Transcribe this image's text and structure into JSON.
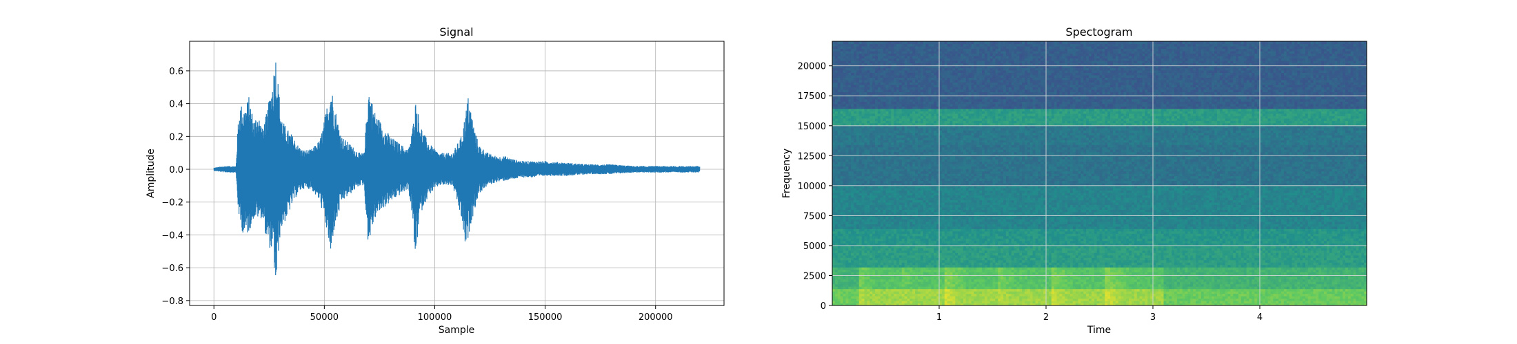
{
  "chart_data": [
    {
      "type": "line",
      "title": "Signal",
      "xlabel": "Sample",
      "ylabel": "Amplitude",
      "xlim": [
        -11000,
        231000
      ],
      "ylim": [
        -0.83,
        0.78
      ],
      "grid": true,
      "color": "#1f77b4",
      "xticks": [
        0,
        50000,
        100000,
        150000,
        200000
      ],
      "yticks": [
        -0.8,
        -0.6,
        -0.4,
        -0.2,
        0.0,
        0.2,
        0.4,
        0.6
      ],
      "xtick_labels": [
        "0",
        "50000",
        "100000",
        "150000",
        "200000"
      ],
      "ytick_labels": [
        "−0.8",
        "−0.6",
        "−0.4",
        "−0.2",
        "0.0",
        "0.2",
        "0.4",
        "0.6"
      ],
      "series": [
        {
          "envelope_x": [
            0,
            5000,
            10000,
            11000,
            12000,
            14000,
            16000,
            18000,
            20000,
            22000,
            24000,
            26000,
            27000,
            28000,
            29000,
            30000,
            31000,
            33000,
            36000,
            38000,
            40000,
            44000,
            48000,
            50000,
            52000,
            53000,
            54000,
            56000,
            58000,
            62000,
            66000,
            68000,
            69000,
            70000,
            71000,
            73000,
            76000,
            80000,
            85000,
            88000,
            90000,
            91000,
            92000,
            93000,
            95000,
            98000,
            102000,
            108000,
            112000,
            114000,
            115000,
            116000,
            117000,
            118000,
            120000,
            124000,
            128000,
            132000,
            136000,
            140000,
            145000,
            150000,
            160000,
            170000,
            180000,
            190000,
            200000,
            210000,
            220000
          ],
          "upper": [
            0.01,
            0.02,
            0.02,
            0.3,
            0.4,
            0.38,
            0.45,
            0.3,
            0.35,
            0.25,
            0.35,
            0.5,
            0.6,
            0.71,
            0.55,
            0.4,
            0.3,
            0.25,
            0.2,
            0.15,
            0.12,
            0.12,
            0.18,
            0.3,
            0.45,
            0.52,
            0.45,
            0.3,
            0.2,
            0.15,
            0.1,
            0.1,
            0.3,
            0.52,
            0.45,
            0.35,
            0.28,
            0.2,
            0.15,
            0.12,
            0.25,
            0.42,
            0.4,
            0.3,
            0.22,
            0.15,
            0.1,
            0.1,
            0.2,
            0.35,
            0.45,
            0.4,
            0.32,
            0.25,
            0.15,
            0.1,
            0.08,
            0.08,
            0.06,
            0.05,
            0.05,
            0.05,
            0.04,
            0.03,
            0.03,
            0.02,
            0.02,
            0.02,
            0.02
          ],
          "lower": [
            -0.01,
            -0.02,
            -0.02,
            -0.25,
            -0.35,
            -0.42,
            -0.38,
            -0.3,
            -0.3,
            -0.3,
            -0.45,
            -0.5,
            -0.55,
            -0.76,
            -0.55,
            -0.4,
            -0.35,
            -0.3,
            -0.2,
            -0.15,
            -0.12,
            -0.12,
            -0.2,
            -0.3,
            -0.45,
            -0.58,
            -0.4,
            -0.3,
            -0.2,
            -0.15,
            -0.1,
            -0.1,
            -0.3,
            -0.48,
            -0.4,
            -0.3,
            -0.25,
            -0.2,
            -0.15,
            -0.12,
            -0.3,
            -0.57,
            -0.45,
            -0.3,
            -0.22,
            -0.15,
            -0.1,
            -0.1,
            -0.3,
            -0.49,
            -0.45,
            -0.35,
            -0.3,
            -0.25,
            -0.15,
            -0.1,
            -0.08,
            -0.07,
            -0.06,
            -0.05,
            -0.05,
            -0.04,
            -0.04,
            -0.03,
            -0.03,
            -0.02,
            -0.02,
            -0.02,
            -0.02
          ]
        }
      ]
    },
    {
      "type": "heatmap",
      "title": "Spectogram",
      "xlabel": "Time",
      "ylabel": "Frequency",
      "xlim": [
        0,
        5.0
      ],
      "ylim": [
        0,
        22050
      ],
      "grid": true,
      "colormap": "viridis",
      "xticks": [
        1,
        2,
        3,
        4
      ],
      "yticks": [
        0,
        2500,
        5000,
        7500,
        10000,
        12500,
        15000,
        17500,
        20000
      ],
      "xtick_labels": [
        "1",
        "2",
        "3",
        "4"
      ],
      "ytick_labels": [
        "0",
        "2500",
        "5000",
        "7500",
        "10000",
        "12500",
        "15000",
        "17500",
        "20000"
      ],
      "bands": [
        {
          "f0": 0,
          "f1": 1500,
          "level": 0.85
        },
        {
          "f0": 1500,
          "f1": 3300,
          "level": 0.72
        },
        {
          "f0": 3300,
          "f1": 5000,
          "level": 0.55
        },
        {
          "f0": 5000,
          "f1": 6500,
          "level": 0.52
        },
        {
          "f0": 6500,
          "f1": 10000,
          "level": 0.45
        },
        {
          "f0": 10000,
          "f1": 13500,
          "level": 0.38
        },
        {
          "f0": 13500,
          "f1": 15000,
          "level": 0.4
        },
        {
          "f0": 15000,
          "f1": 16500,
          "level": 0.55
        },
        {
          "f0": 16500,
          "f1": 22050,
          "level": 0.3
        }
      ],
      "bursts": [
        {
          "t0": 0.25,
          "t1": 0.65,
          "level": 0.9
        },
        {
          "t0": 0.65,
          "t1": 1.05,
          "level": 0.88
        },
        {
          "t0": 1.05,
          "t1": 1.55,
          "level": 0.93
        },
        {
          "t0": 1.55,
          "t1": 2.05,
          "level": 0.9
        },
        {
          "t0": 2.05,
          "t1": 2.55,
          "level": 0.92
        },
        {
          "t0": 2.55,
          "t1": 3.1,
          "level": 0.93
        }
      ]
    }
  ]
}
